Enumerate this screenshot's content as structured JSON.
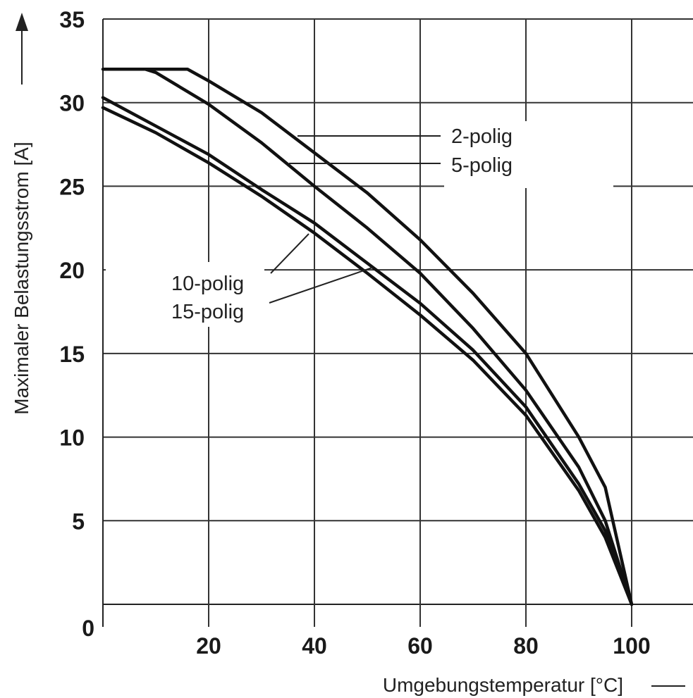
{
  "chart_data": {
    "type": "line",
    "xlabel": "Umgebungstemperatur [°C]",
    "ylabel": "Maximaler Belastungsstrom [A]",
    "xlim": [
      0,
      111
    ],
    "ylim": [
      0,
      35
    ],
    "x_ticks": [
      "20",
      "40",
      "60",
      "80",
      "100"
    ],
    "y_ticks": [
      "0",
      "5",
      "10",
      "15",
      "20",
      "25",
      "30",
      "35"
    ],
    "grid": true,
    "series": [
      {
        "name": "2-polig",
        "x": [
          0,
          16,
          20,
          30,
          40,
          50,
          60,
          70,
          80,
          90,
          95,
          100
        ],
        "y": [
          32,
          32,
          31.3,
          29.4,
          27,
          24.6,
          21.8,
          18.6,
          15,
          10,
          7,
          0
        ]
      },
      {
        "name": "5-polig",
        "x": [
          8,
          10,
          20,
          30,
          40,
          50,
          60,
          70,
          80,
          90,
          95,
          100
        ],
        "y": [
          32,
          31.8,
          29.9,
          27.6,
          25,
          22.5,
          19.8,
          16.5,
          12.8,
          8.2,
          5,
          0
        ]
      },
      {
        "name": "10-polig",
        "x": [
          0,
          10,
          20,
          30,
          40,
          50,
          60,
          70,
          80,
          90,
          95,
          100
        ],
        "y": [
          30.3,
          28.6,
          26.9,
          24.8,
          22.8,
          20.4,
          18,
          15.2,
          11.8,
          7.2,
          4.4,
          0
        ]
      },
      {
        "name": "15-polig",
        "x": [
          0,
          10,
          20,
          30,
          40,
          50,
          60,
          70,
          80,
          90,
          95,
          100
        ],
        "y": [
          29.7,
          28.2,
          26.4,
          24.4,
          22.2,
          19.8,
          17.3,
          14.6,
          11.3,
          6.8,
          4,
          0
        ]
      }
    ]
  }
}
